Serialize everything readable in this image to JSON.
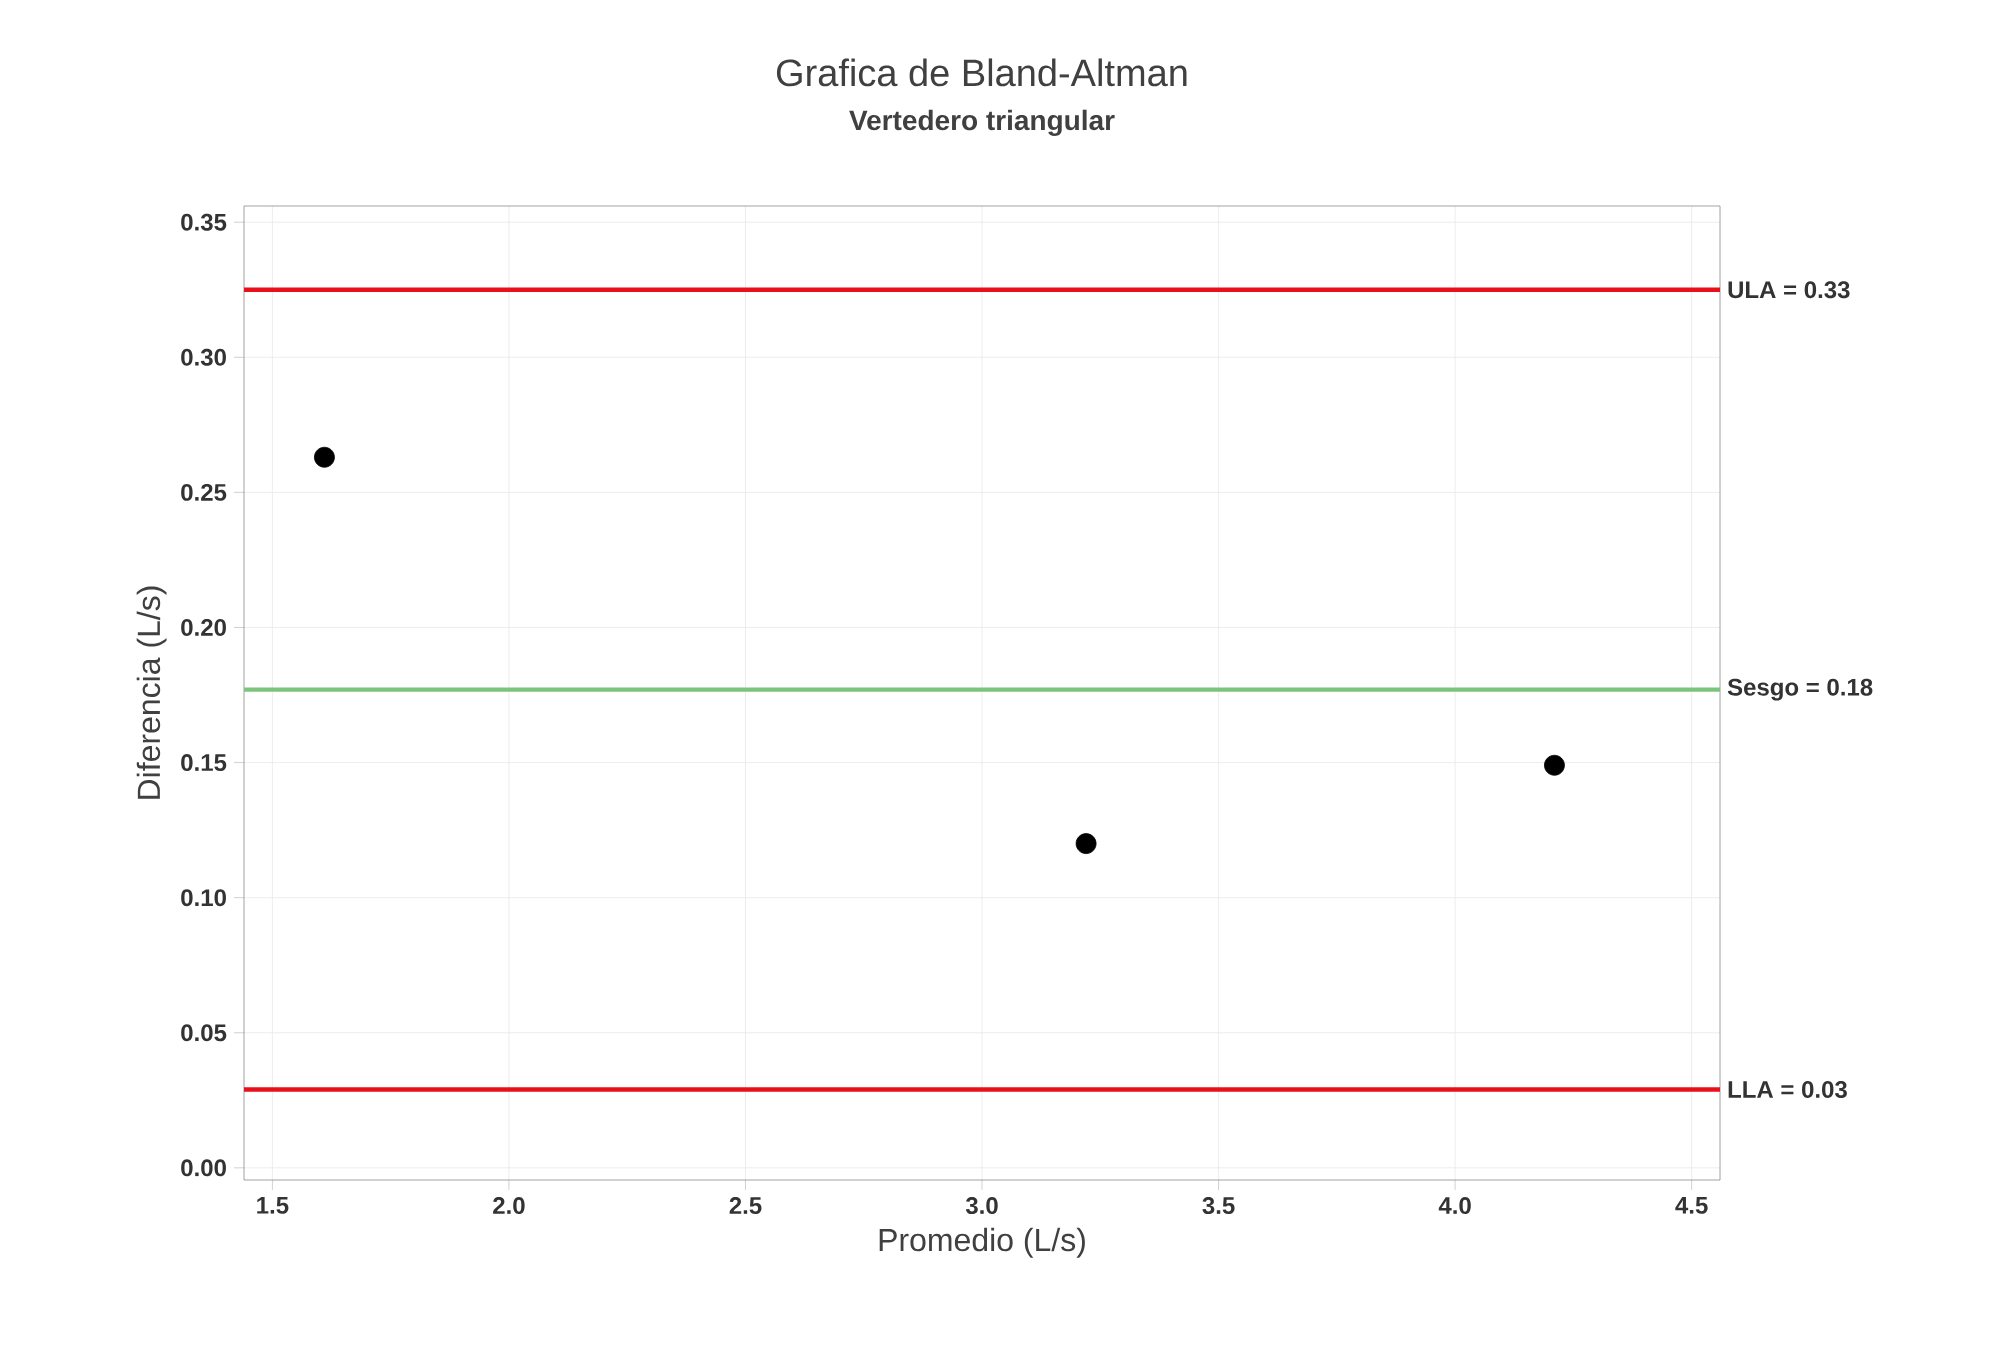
{
  "chart_data": {
    "type": "scatter",
    "title": "Grafica de Bland-Altman",
    "subtitle": "Vertedero triangular",
    "xlabel": "Promedio (L/s)",
    "ylabel": "Diferencia (L/s)",
    "x": [
      1.61,
      3.22,
      4.21
    ],
    "series": [
      {
        "color": "#000000",
        "values": [
          0.263,
          0.12,
          0.149
        ]
      }
    ],
    "marker": "circle",
    "xlim": [
      1.44,
      4.56
    ],
    "ylim": [
      -0.0045,
      0.356
    ],
    "xticks": [
      {
        "value": 1.5,
        "label": "1.5"
      },
      {
        "value": 2.0,
        "label": "2.0"
      },
      {
        "value": 2.5,
        "label": "2.5"
      },
      {
        "value": 3.0,
        "label": "3.0"
      },
      {
        "value": 3.5,
        "label": "3.5"
      },
      {
        "value": 4.0,
        "label": "4.0"
      },
      {
        "value": 4.5,
        "label": "4.5"
      }
    ],
    "yticks": [
      {
        "value": 0,
        "label": "0.00"
      },
      {
        "value": 0.05,
        "label": "0.05"
      },
      {
        "value": 0.1,
        "label": "0.10"
      },
      {
        "value": 0.15,
        "label": "0.15"
      },
      {
        "value": 0.2,
        "label": "0.20"
      },
      {
        "value": 0.25,
        "label": "0.25"
      },
      {
        "value": 0.3,
        "label": "0.30"
      },
      {
        "value": 0.35,
        "label": "0.35"
      }
    ],
    "grid": true,
    "ref_lines": [
      {
        "axis": "y",
        "value": 0.325,
        "label": "ULA = 0.33",
        "color": "#e8101a"
      },
      {
        "axis": "y",
        "value": 0.177,
        "label": "Sesgo = 0.18",
        "color": "#7cc47c"
      },
      {
        "axis": "y",
        "value": 0.029,
        "label": "LLA = 0.03",
        "color": "#e8101a"
      }
    ]
  }
}
